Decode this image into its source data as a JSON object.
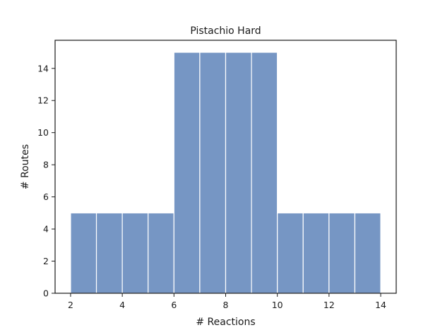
{
  "chart_data": {
    "type": "bar",
    "title": "Pistachio Hard",
    "xlabel": "# Reactions",
    "ylabel": "# Routes",
    "bins": [
      {
        "start": 2,
        "end": 3,
        "value": 5
      },
      {
        "start": 3,
        "end": 4,
        "value": 5
      },
      {
        "start": 4,
        "end": 5,
        "value": 5
      },
      {
        "start": 5,
        "end": 6,
        "value": 5
      },
      {
        "start": 6,
        "end": 7,
        "value": 15
      },
      {
        "start": 7,
        "end": 8,
        "value": 15
      },
      {
        "start": 8,
        "end": 9,
        "value": 15
      },
      {
        "start": 9,
        "end": 10,
        "value": 15
      },
      {
        "start": 10,
        "end": 11,
        "value": 5
      },
      {
        "start": 11,
        "end": 12,
        "value": 5
      },
      {
        "start": 12,
        "end": 13,
        "value": 5
      },
      {
        "start": 13,
        "end": 14,
        "value": 5
      }
    ],
    "xlim": [
      1.4,
      14.6
    ],
    "ylim": [
      0,
      15.75
    ],
    "x_ticks": [
      2,
      4,
      6,
      8,
      10,
      12,
      14
    ],
    "y_ticks": [
      0,
      2,
      4,
      6,
      8,
      10,
      12,
      14
    ],
    "bar_color": "#7696c4",
    "grid": false
  }
}
